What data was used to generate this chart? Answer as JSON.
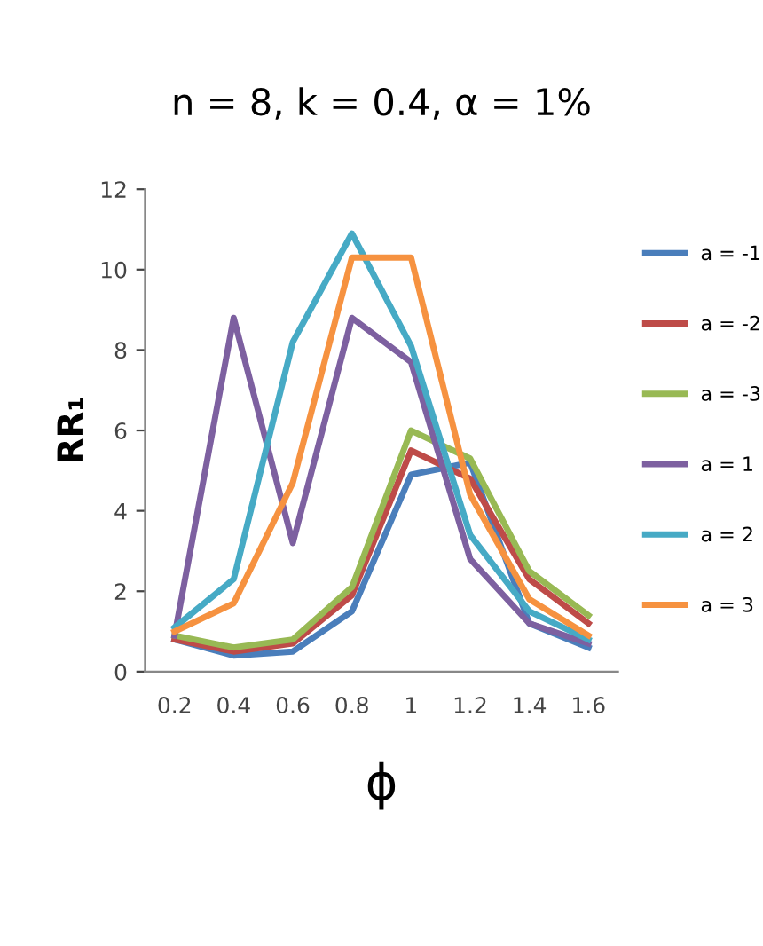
{
  "chart_data": {
    "type": "line",
    "title": "n = 8, k = 0.4, α = 1%",
    "xlabel": "ϕ",
    "ylabel": "RR₁",
    "categories": [
      "0.2",
      "0.4",
      "0.6",
      "0.8",
      "1",
      "1.2",
      "1.4",
      "1.6"
    ],
    "series": [
      {
        "name": "a = -1",
        "color": "#4a7ebb",
        "values": [
          0.8,
          0.4,
          0.5,
          1.5,
          4.9,
          5.2,
          1.2,
          0.6
        ]
      },
      {
        "name": "a = -2",
        "color": "#be4b48",
        "values": [
          0.8,
          0.5,
          0.7,
          1.9,
          5.5,
          4.8,
          2.3,
          1.2
        ]
      },
      {
        "name": "a = -3",
        "color": "#98b954",
        "values": [
          0.9,
          0.6,
          0.8,
          2.1,
          6.0,
          5.3,
          2.5,
          1.4
        ]
      },
      {
        "name": "a = 1",
        "color": "#7d60a0",
        "values": [
          0.9,
          8.8,
          3.2,
          8.8,
          7.7,
          2.8,
          1.2,
          0.7
        ]
      },
      {
        "name": "a = 2",
        "color": "#46aac5",
        "values": [
          1.1,
          2.3,
          8.2,
          10.9,
          8.1,
          3.4,
          1.5,
          0.8
        ]
      },
      {
        "name": "a = 3",
        "color": "#f69240",
        "values": [
          1.0,
          1.7,
          4.7,
          10.3,
          10.3,
          4.4,
          1.8,
          0.9
        ]
      }
    ],
    "ylim": [
      0,
      12
    ],
    "yticks": [
      0,
      2,
      4,
      6,
      8,
      10,
      12
    ],
    "grid": false,
    "legend": "right",
    "marker": "none",
    "line_style": "solid"
  }
}
